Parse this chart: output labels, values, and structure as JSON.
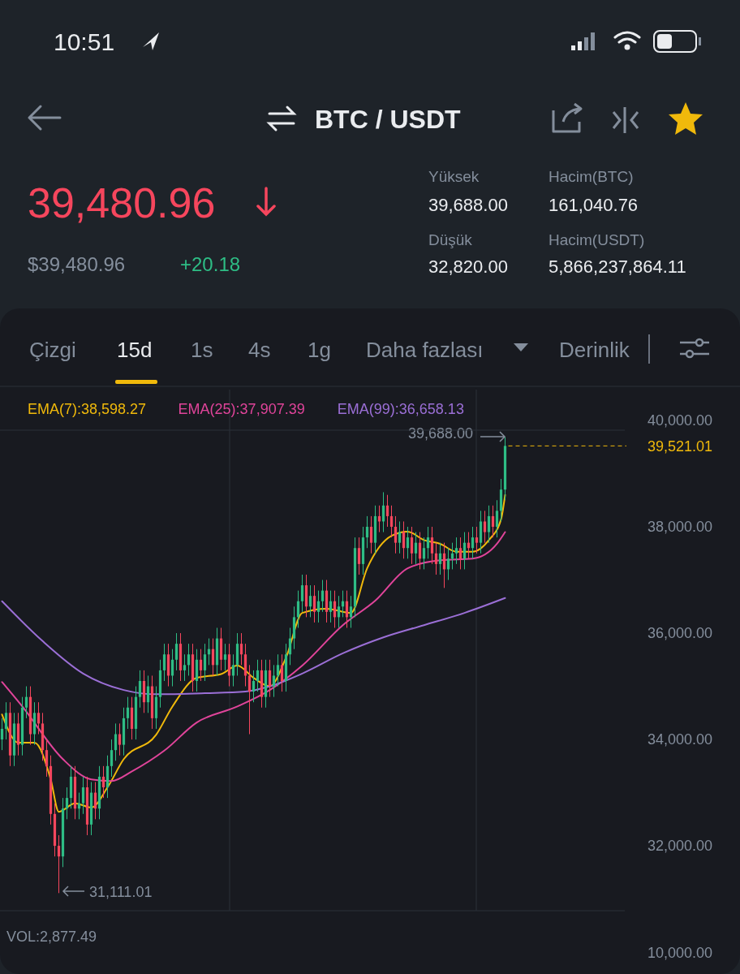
{
  "chart_data": {
    "type": "candlestick",
    "title": "BTC / USDT",
    "legend": "top left",
    "grid": false,
    "annotations": [
      "10:51",
      "39,480.96",
      "$39,480.96",
      "+20.18",
      "Yüksek",
      "39,688.00",
      "Hacim(BTC)",
      "161,040.76",
      "Düşük",
      "32,820.00",
      "Hacim(USDT)",
      "5,866,237,864.11",
      "Çizgi",
      "15d",
      "1s",
      "4s",
      "1g",
      "Daha fazlası",
      "Derinlik",
      "VOL:2,877.49",
      "10,000.00",
      "39,688.00",
      "31,111.01"
    ],
    "ylim": [
      30780,
      40580
    ],
    "yticks": [
      {
        "value": 32000,
        "label": "32,000.00"
      },
      {
        "value": 34000,
        "label": "34,000.00"
      },
      {
        "value": 36000,
        "label": "36,000.00"
      },
      {
        "value": 38000,
        "label": "38,000.00"
      },
      {
        "value": 40000,
        "label": "40,000.00"
      }
    ],
    "ref_lines": [
      {
        "axis": "y",
        "value": 39521.01,
        "label": "39,521.01",
        "color": "#f0b90b",
        "line_style": "dashed"
      }
    ],
    "categories": [
      null,
      null,
      null,
      null,
      null,
      null,
      null,
      null,
      null,
      null,
      null,
      null,
      null,
      null,
      null,
      null,
      null,
      null,
      null,
      null,
      null,
      null,
      null,
      null,
      null,
      null,
      null,
      null,
      null,
      null,
      null,
      null,
      null,
      null,
      null,
      null,
      null,
      null,
      null,
      null,
      null,
      null,
      null,
      null,
      null,
      null,
      null,
      null,
      null,
      null,
      null,
      null,
      null,
      null,
      null,
      null,
      null,
      null,
      null,
      null,
      null,
      null,
      null,
      null,
      null,
      null,
      null,
      null,
      null,
      null,
      null,
      null,
      null,
      null,
      null,
      null,
      null,
      null,
      null,
      null,
      null,
      null,
      null,
      null,
      null,
      null,
      null,
      null,
      null,
      null,
      null,
      null,
      null,
      null,
      null,
      null,
      null,
      null,
      null,
      null,
      null,
      null,
      null,
      null,
      null,
      null,
      null,
      null,
      null,
      null,
      null,
      null,
      null,
      null,
      null,
      null,
      null,
      null,
      null,
      null,
      null,
      null,
      null,
      null,
      null,
      null,
      null,
      null,
      null,
      null,
      null,
      null,
      null,
      null,
      null,
      null,
      null,
      null,
      null,
      null,
      null,
      null,
      null,
      null,
      null,
      null,
      null,
      null,
      null,
      null,
      null,
      null,
      null,
      null
    ],
    "ohlc": [
      [
        34000,
        34400,
        33800,
        34200
      ],
      [
        34200,
        34700,
        34000,
        34500
      ],
      [
        34500,
        34700,
        33500,
        33700
      ],
      [
        33700,
        34500,
        33500,
        34300
      ],
      [
        34300,
        34500,
        33700,
        33900
      ],
      [
        33900,
        34800,
        33700,
        34600
      ],
      [
        34600,
        35000,
        34400,
        34800
      ],
      [
        34800,
        35000,
        33900,
        34100
      ],
      [
        34100,
        34700,
        33900,
        34500
      ],
      [
        34500,
        34700,
        34100,
        34300
      ],
      [
        34300,
        34500,
        33600,
        33800
      ],
      [
        33800,
        34000,
        33300,
        33500
      ],
      [
        33500,
        33700,
        32400,
        32600
      ],
      [
        32600,
        32800,
        31800,
        32000
      ],
      [
        32000,
        32200,
        31111,
        31800
      ],
      [
        31800,
        32900,
        31600,
        32700
      ],
      [
        32700,
        33100,
        32500,
        32900
      ],
      [
        32900,
        33500,
        32700,
        33300
      ],
      [
        33300,
        33500,
        32500,
        32700
      ],
      [
        32700,
        33000,
        32500,
        32800
      ],
      [
        32800,
        33300,
        32600,
        33100
      ],
      [
        33100,
        33300,
        32200,
        32400
      ],
      [
        32400,
        33200,
        32200,
        33000
      ],
      [
        33000,
        33200,
        32500,
        32700
      ],
      [
        32700,
        33500,
        32500,
        33300
      ],
      [
        33300,
        33500,
        32900,
        33100
      ],
      [
        33100,
        33700,
        32900,
        33500
      ],
      [
        33500,
        34000,
        33300,
        33800
      ],
      [
        33800,
        34300,
        33600,
        34100
      ],
      [
        34100,
        34300,
        33700,
        33900
      ],
      [
        33900,
        34600,
        33700,
        34400
      ],
      [
        34400,
        34800,
        34200,
        34600
      ],
      [
        34600,
        34800,
        34000,
        34200
      ],
      [
        34200,
        35000,
        34000,
        34800
      ],
      [
        34800,
        35300,
        34600,
        35100
      ],
      [
        35100,
        35300,
        34500,
        34700
      ],
      [
        34700,
        35200,
        34500,
        35000
      ],
      [
        35000,
        35200,
        34200,
        34400
      ],
      [
        34400,
        35000,
        34200,
        34800
      ],
      [
        34800,
        35500,
        34600,
        35300
      ],
      [
        35300,
        35800,
        35100,
        35600
      ],
      [
        35600,
        35800,
        35000,
        35200
      ],
      [
        35200,
        35700,
        35000,
        35500
      ],
      [
        35500,
        36000,
        35300,
        35800
      ],
      [
        35800,
        36000,
        35100,
        35300
      ],
      [
        35300,
        35600,
        35100,
        35400
      ],
      [
        35400,
        35800,
        35200,
        35600
      ],
      [
        35600,
        35800,
        34900,
        35100
      ],
      [
        35100,
        35700,
        34900,
        35500
      ],
      [
        35500,
        35700,
        35100,
        35300
      ],
      [
        35300,
        35800,
        35100,
        35600
      ],
      [
        35600,
        35900,
        35400,
        35700
      ],
      [
        35700,
        35900,
        35200,
        35400
      ],
      [
        35400,
        36100,
        35200,
        35900
      ],
      [
        35900,
        36100,
        35300,
        35500
      ],
      [
        35500,
        35800,
        35300,
        35600
      ],
      [
        35600,
        35800,
        35000,
        35200
      ],
      [
        35200,
        35600,
        35000,
        35400
      ],
      [
        35400,
        36000,
        35200,
        35800
      ],
      [
        35800,
        36000,
        35400,
        35600
      ],
      [
        35600,
        35800,
        35000,
        35200
      ],
      [
        35200,
        35400,
        34100,
        34900
      ],
      [
        34900,
        35300,
        34700,
        35100
      ],
      [
        35100,
        35500,
        34900,
        35300
      ],
      [
        35300,
        35500,
        34600,
        34800
      ],
      [
        34800,
        35500,
        34600,
        35300
      ],
      [
        35300,
        35500,
        34800,
        35000
      ],
      [
        35000,
        35400,
        34800,
        35200
      ],
      [
        35200,
        35600,
        35000,
        35400
      ],
      [
        35400,
        35600,
        34900,
        35100
      ],
      [
        35100,
        35800,
        34900,
        35600
      ],
      [
        35600,
        36100,
        35400,
        35900
      ],
      [
        35900,
        36500,
        35700,
        36300
      ],
      [
        36300,
        36800,
        36100,
        36600
      ],
      [
        36600,
        37100,
        36400,
        36900
      ],
      [
        36900,
        37100,
        36300,
        36500
      ],
      [
        36500,
        36900,
        36300,
        36700
      ],
      [
        36700,
        36900,
        36200,
        36400
      ],
      [
        36400,
        36800,
        36200,
        36600
      ],
      [
        36600,
        37000,
        36400,
        36800
      ],
      [
        36800,
        37000,
        36200,
        36400
      ],
      [
        36400,
        36800,
        36200,
        36600
      ],
      [
        36600,
        36800,
        36100,
        36300
      ],
      [
        36300,
        36700,
        36100,
        36500
      ],
      [
        36500,
        36800,
        36300,
        36600
      ],
      [
        36600,
        36800,
        36100,
        36300
      ],
      [
        36300,
        36700,
        36100,
        36500
      ],
      [
        36500,
        37800,
        36300,
        37600
      ],
      [
        37600,
        37800,
        37100,
        37300
      ],
      [
        37300,
        38000,
        37100,
        37800
      ],
      [
        37800,
        38200,
        37600,
        38000
      ],
      [
        38000,
        38200,
        37500,
        37700
      ],
      [
        37700,
        38400,
        37500,
        38200
      ],
      [
        38200,
        38400,
        37900,
        38100
      ],
      [
        38100,
        38650,
        37900,
        38400
      ],
      [
        38400,
        38600,
        38000,
        38200
      ],
      [
        38200,
        38400,
        37800,
        38000
      ],
      [
        38000,
        38200,
        37500,
        37700
      ],
      [
        37700,
        38100,
        37500,
        37900
      ],
      [
        37900,
        38100,
        37400,
        37600
      ],
      [
        37600,
        38000,
        37400,
        37800
      ],
      [
        37800,
        38000,
        37300,
        37500
      ],
      [
        37500,
        37900,
        37300,
        37700
      ],
      [
        37700,
        37900,
        37200,
        37400
      ],
      [
        37400,
        37800,
        37200,
        37600
      ],
      [
        37600,
        38000,
        37400,
        37800
      ],
      [
        37800,
        38000,
        37300,
        37500
      ],
      [
        37500,
        37700,
        37100,
        37300
      ],
      [
        37300,
        37700,
        37100,
        37500
      ],
      [
        37500,
        37700,
        36850,
        37200
      ],
      [
        37200,
        37600,
        37000,
        37400
      ],
      [
        37400,
        37700,
        37200,
        37500
      ],
      [
        37500,
        37800,
        37300,
        37600
      ],
      [
        37600,
        37800,
        37200,
        37400
      ],
      [
        37400,
        37900,
        37200,
        37700
      ],
      [
        37700,
        37900,
        37400,
        37600
      ],
      [
        37600,
        38000,
        37400,
        37800
      ],
      [
        37800,
        38000,
        37500,
        37700
      ],
      [
        37700,
        38300,
        37500,
        38100
      ],
      [
        38100,
        38300,
        37700,
        37900
      ],
      [
        37900,
        38400,
        37700,
        38200
      ],
      [
        38200,
        38400,
        37800,
        38000
      ],
      [
        38000,
        38500,
        37800,
        38300
      ],
      [
        38300,
        38900,
        38100,
        38700
      ],
      [
        38700,
        39688,
        38500,
        39521
      ],
      null,
      null,
      null,
      null,
      null,
      null,
      null,
      null,
      null,
      null,
      null,
      null,
      null,
      null,
      null,
      null,
      null,
      null,
      null,
      null,
      null,
      null,
      null,
      null,
      null,
      null,
      null,
      null,
      null
    ],
    "series": [
      {
        "name": "EMA(7):38,598.27",
        "type": "line",
        "color": "#f0b90b",
        "values": [
          34470,
          null,
          null,
          null,
          33940,
          null,
          null,
          null,
          33940,
          null,
          null,
          null,
          33250,
          null,
          32640,
          null,
          null,
          null,
          32800,
          null,
          null,
          null,
          32720,
          null,
          null,
          null,
          33100,
          null,
          null,
          null,
          33630,
          null,
          null,
          null,
          null,
          null,
          null,
          null,
          34090,
          null,
          null,
          null,
          34620,
          null,
          null,
          null,
          null,
          null,
          35160,
          null,
          null,
          null,
          null,
          null,
          35230,
          null,
          null,
          null,
          35390,
          null,
          null,
          null,
          35160,
          null,
          null,
          null,
          35000,
          null,
          null,
          null,
          35540,
          null,
          null,
          null,
          36380,
          null,
          null,
          null,
          null,
          null,
          36460,
          null,
          null,
          null,
          null,
          null,
          36380,
          null,
          null,
          null,
          37220,
          null,
          null,
          null,
          null,
          null,
          37830,
          null,
          null,
          null,
          37910,
          null,
          null,
          null,
          37750,
          null,
          null,
          null,
          37680,
          null,
          null,
          null,
          37530,
          null,
          null,
          null,
          37530,
          null,
          null,
          null,
          37750,
          null,
          null,
          38140,
          38600,
          null,
          null,
          null,
          null,
          null,
          null,
          null,
          null,
          null,
          null,
          null,
          null,
          null,
          null,
          null,
          null,
          null,
          null,
          null,
          null,
          null,
          null,
          null,
          null,
          null,
          null,
          null,
          null,
          null
        ]
      },
      {
        "name": "EMA(25):37,907.39",
        "type": "line",
        "color": "#e0449a",
        "values": [
          35080,
          null,
          null,
          null,
          null,
          34620,
          null,
          null,
          null,
          null,
          null,
          null,
          null,
          null,
          null,
          33630,
          null,
          null,
          null,
          null,
          null,
          null,
          33250,
          null,
          null,
          null,
          null,
          33220,
          null,
          null,
          null,
          null,
          33400,
          null,
          null,
          null,
          null,
          null,
          null,
          null,
          33790,
          null,
          null,
          null,
          null,
          null,
          null,
          null,
          34320,
          null,
          null,
          null,
          null,
          null,
          null,
          null,
          null,
          null,
          34620,
          null,
          null,
          null,
          null,
          null,
          null,
          null,
          34930,
          null,
          null,
          null,
          null,
          null,
          null,
          null,
          35390,
          null,
          null,
          null,
          null,
          null,
          null,
          null,
          null,
          null,
          36150,
          null,
          null,
          null,
          null,
          null,
          null,
          null,
          36610,
          null,
          null,
          null,
          null,
          null,
          null,
          null,
          37220,
          null,
          null,
          null,
          null,
          null,
          null,
          null,
          37370,
          null,
          null,
          null,
          null,
          null,
          null,
          null,
          37400,
          null,
          null,
          null,
          null,
          null,
          37680,
          null,
          37900,
          null,
          null,
          null,
          null,
          null,
          null,
          null,
          null,
          null,
          null,
          null,
          null,
          null,
          null,
          null,
          null,
          null,
          null,
          null,
          null,
          null,
          null,
          null,
          null,
          null,
          null,
          null,
          null,
          null
        ]
      },
      {
        "name": "EMA(99):36,658.13",
        "type": "line",
        "color": "#9b6fd6",
        "values": [
          36600,
          null,
          null,
          null,
          null,
          null,
          null,
          null,
          null,
          null,
          35850,
          null,
          null,
          null,
          null,
          null,
          null,
          null,
          null,
          null,
          35240,
          null,
          null,
          null,
          null,
          null,
          null,
          null,
          null,
          null,
          34930,
          null,
          null,
          null,
          null,
          null,
          null,
          null,
          34850,
          null,
          null,
          null,
          null,
          null,
          null,
          null,
          null,
          null,
          null,
          null,
          34870,
          null,
          null,
          null,
          null,
          null,
          null,
          null,
          null,
          null,
          34900,
          null,
          null,
          null,
          null,
          null,
          35000,
          null,
          null,
          null,
          null,
          null,
          null,
          null,
          35240,
          null,
          null,
          null,
          null,
          null,
          null,
          null,
          null,
          null,
          35620,
          null,
          null,
          null,
          null,
          null,
          null,
          null,
          null,
          null,
          35920,
          null,
          null,
          null,
          null,
          null,
          null,
          null,
          null,
          null,
          36150,
          null,
          null,
          null,
          null,
          null,
          null,
          null,
          null,
          null,
          36380,
          null,
          null,
          null,
          null,
          null,
          null,
          null,
          null,
          null,
          36660,
          null,
          null,
          null,
          null,
          null,
          null,
          null,
          null,
          null,
          null,
          null,
          null,
          null,
          null,
          null,
          null,
          null,
          null,
          null,
          null,
          null,
          null,
          null,
          null,
          null,
          null,
          null,
          null,
          null
        ]
      }
    ]
  }
}
